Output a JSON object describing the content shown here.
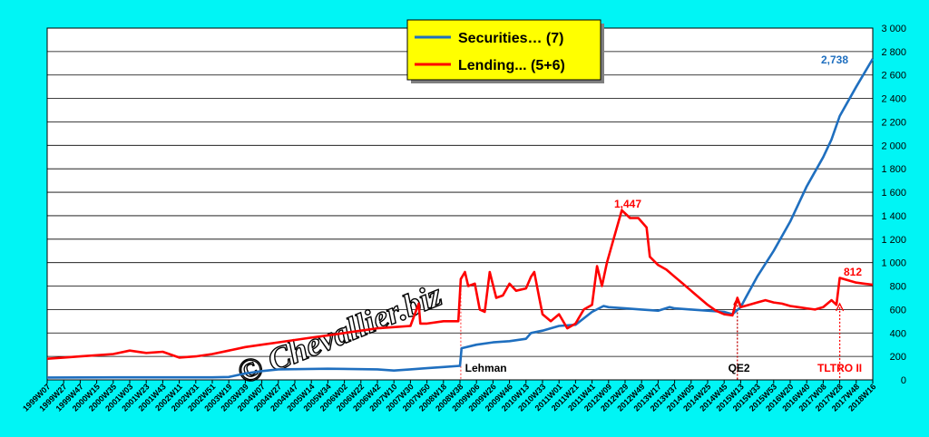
{
  "colors": {
    "background": "#00f5f5",
    "plot_background": "#ffffff",
    "securities": "#1f6fbf",
    "lending": "#ff0000",
    "legend_background": "#ffff00",
    "gridline": "#000000"
  },
  "watermark": "© Chevallier.biz",
  "chart_data": {
    "type": "line",
    "title": "",
    "xlabel": "",
    "ylabel": "",
    "ylim": [
      0,
      3000
    ],
    "y_ticks": [
      "0",
      "200",
      "400",
      "600",
      "800",
      "1 000",
      "1 200",
      "1 400",
      "1 600",
      "1 800",
      "2 000",
      "2 200",
      "2 400",
      "2 600",
      "2 800",
      "3 000"
    ],
    "y_tick_values": [
      0,
      200,
      400,
      600,
      800,
      1000,
      1200,
      1400,
      1600,
      1800,
      2000,
      2200,
      2400,
      2600,
      2800,
      3000
    ],
    "grid": true,
    "legend_position": "top-center",
    "x_tick_labels": [
      "1999W07",
      "1999W27",
      "1999W47",
      "2000W15",
      "2000W35",
      "2001W03",
      "2001W23",
      "2001W43",
      "2002W11",
      "2002W31",
      "2002W51",
      "2003W19",
      "2003W39",
      "2004W07",
      "2004W27",
      "2004W47",
      "2005W14",
      "2005W34",
      "2006W02",
      "2006W22",
      "2006W42",
      "2007W10",
      "2007W30",
      "2007W50",
      "2008W18",
      "2008W38",
      "2009W06",
      "2009W26",
      "2009W46",
      "2010W13",
      "2010W33",
      "2011W01",
      "2011W21",
      "2011W41",
      "2012W09",
      "2012W29",
      "2012W49",
      "2013W17",
      "2013W37",
      "2014W05",
      "2014W25",
      "2014W45",
      "2015W13",
      "2015W33",
      "2015W53",
      "2016W20",
      "2016W40",
      "2017W08",
      "2017W28",
      "2017W48",
      "2018W16"
    ],
    "series": [
      {
        "name": "Securities… (7)",
        "color": "#1f6fbf",
        "points": [
          [
            0,
            20
          ],
          [
            5,
            22
          ],
          [
            10,
            22
          ],
          [
            11,
            25
          ],
          [
            12,
            55
          ],
          [
            13,
            75
          ],
          [
            14,
            90
          ],
          [
            17,
            95
          ],
          [
            20,
            90
          ],
          [
            21,
            80
          ],
          [
            22,
            90
          ],
          [
            23,
            100
          ],
          [
            24,
            110
          ],
          [
            25,
            120
          ],
          [
            25.1,
            270
          ],
          [
            26,
            300
          ],
          [
            27,
            320
          ],
          [
            28,
            330
          ],
          [
            29,
            350
          ],
          [
            29.3,
            400
          ],
          [
            30,
            420
          ],
          [
            31,
            460
          ],
          [
            32,
            470
          ],
          [
            33,
            580
          ],
          [
            33.7,
            630
          ],
          [
            34,
            620
          ],
          [
            35,
            610
          ],
          [
            36,
            600
          ],
          [
            37,
            590
          ],
          [
            37.7,
            620
          ],
          [
            38,
            610
          ],
          [
            39,
            600
          ],
          [
            40,
            590
          ],
          [
            41,
            580
          ],
          [
            41.5,
            560
          ],
          [
            42,
            620
          ],
          [
            42.3,
            700
          ],
          [
            43,
            880
          ],
          [
            44,
            1100
          ],
          [
            45,
            1350
          ],
          [
            46,
            1650
          ],
          [
            47,
            1900
          ],
          [
            47.5,
            2050
          ],
          [
            48,
            2250
          ],
          [
            49,
            2500
          ],
          [
            50,
            2738
          ]
        ]
      },
      {
        "name": "Lending... (5+6)",
        "color": "#ff0000",
        "points": [
          [
            0,
            180
          ],
          [
            1,
            190
          ],
          [
            2,
            200
          ],
          [
            3,
            210
          ],
          [
            4,
            220
          ],
          [
            5,
            250
          ],
          [
            6,
            230
          ],
          [
            7,
            240
          ],
          [
            8,
            190
          ],
          [
            9,
            200
          ],
          [
            10,
            220
          ],
          [
            11,
            250
          ],
          [
            12,
            280
          ],
          [
            13,
            300
          ],
          [
            14,
            320
          ],
          [
            15,
            340
          ],
          [
            16,
            360
          ],
          [
            17,
            380
          ],
          [
            18,
            400
          ],
          [
            19,
            420
          ],
          [
            20,
            440
          ],
          [
            21,
            450
          ],
          [
            22,
            460
          ],
          [
            22.5,
            650
          ],
          [
            22.6,
            480
          ],
          [
            23,
            480
          ],
          [
            24,
            500
          ],
          [
            24.9,
            500
          ],
          [
            25.05,
            860
          ],
          [
            25.3,
            920
          ],
          [
            25.5,
            800
          ],
          [
            25.9,
            820
          ],
          [
            26.2,
            600
          ],
          [
            26.5,
            580
          ],
          [
            26.8,
            920
          ],
          [
            27.2,
            700
          ],
          [
            27.6,
            720
          ],
          [
            28,
            820
          ],
          [
            28.4,
            760
          ],
          [
            29,
            780
          ],
          [
            29.3,
            880
          ],
          [
            29.5,
            920
          ],
          [
            29.8,
            700
          ],
          [
            30,
            560
          ],
          [
            30.5,
            500
          ],
          [
            31,
            560
          ],
          [
            31.5,
            440
          ],
          [
            32,
            480
          ],
          [
            32.5,
            600
          ],
          [
            33,
            640
          ],
          [
            33.3,
            970
          ],
          [
            33.6,
            800
          ],
          [
            33.9,
            1000
          ],
          [
            34.3,
            1200
          ],
          [
            34.8,
            1447
          ],
          [
            35.3,
            1380
          ],
          [
            35.8,
            1380
          ],
          [
            36.3,
            1300
          ],
          [
            36.5,
            1050
          ],
          [
            37,
            980
          ],
          [
            37.5,
            940
          ],
          [
            38,
            880
          ],
          [
            38.5,
            820
          ],
          [
            39,
            760
          ],
          [
            39.5,
            700
          ],
          [
            40,
            640
          ],
          [
            40.5,
            590
          ],
          [
            41,
            560
          ],
          [
            41.5,
            550
          ],
          [
            41.8,
            700
          ],
          [
            42,
            620
          ],
          [
            42.5,
            640
          ],
          [
            43,
            660
          ],
          [
            43.5,
            680
          ],
          [
            44,
            660
          ],
          [
            44.5,
            650
          ],
          [
            45,
            630
          ],
          [
            45.5,
            620
          ],
          [
            46,
            610
          ],
          [
            46.5,
            600
          ],
          [
            47,
            620
          ],
          [
            47.5,
            680
          ],
          [
            47.8,
            640
          ],
          [
            48,
            870
          ],
          [
            48.5,
            850
          ],
          [
            49,
            830
          ],
          [
            49.5,
            820
          ],
          [
            50,
            812
          ]
        ]
      }
    ],
    "annotations": [
      {
        "text": "2,738",
        "x": 49.2,
        "y": 2738,
        "color": "#1f6fbf"
      },
      {
        "text": "812",
        "x": 49.3,
        "y": 812,
        "color": "#ff0000"
      },
      {
        "text": "1,447",
        "x": 34.7,
        "y": 1447,
        "color": "#ff0000"
      },
      {
        "text": "Lehman",
        "x": 25.2,
        "y": 0,
        "color": "#000000"
      },
      {
        "text": "QE2",
        "x": 41.9,
        "y": 0,
        "color": "#000000"
      },
      {
        "text": "TLTRO II",
        "x": 48.0,
        "y": 0,
        "color": "#ff0000"
      }
    ],
    "event_markers": [
      {
        "x": 25.05,
        "y_top": 860,
        "color": "#ff6060"
      },
      {
        "x": 41.8,
        "y_top": 700,
        "color": "#c00000"
      },
      {
        "x": 48.0,
        "y_top": 650,
        "color": "#ff0000"
      }
    ]
  }
}
